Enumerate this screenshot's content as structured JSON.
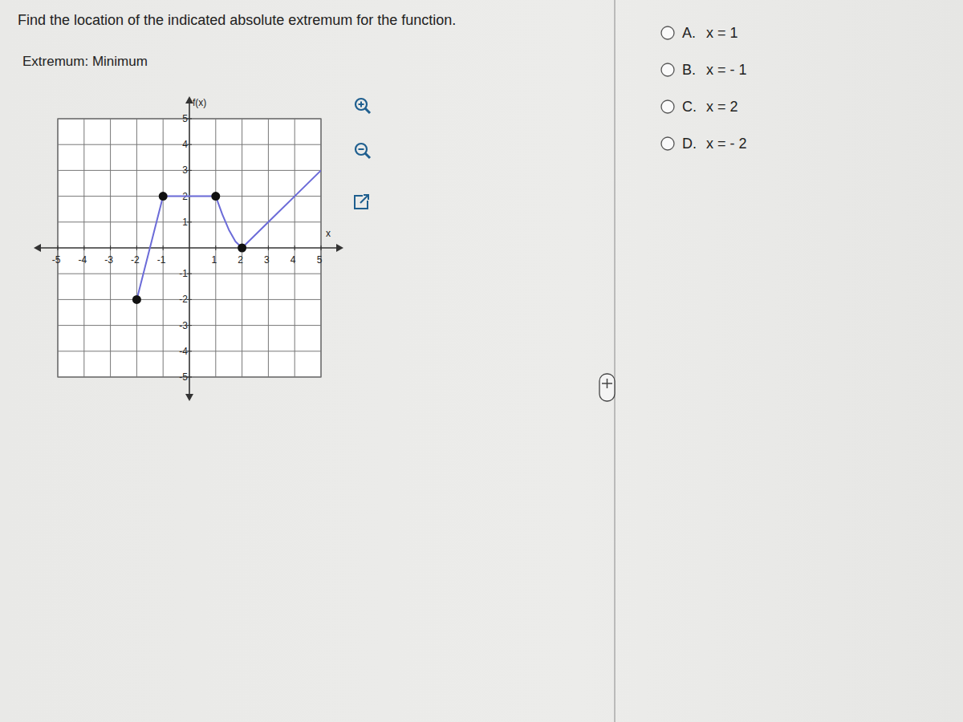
{
  "question": "Find the location of the indicated absolute extremum for the function.",
  "extremum": "Extremum: Minimum",
  "options": [
    {
      "letter": "A.",
      "text": "x = 1"
    },
    {
      "letter": "B.",
      "text": "x = - 1"
    },
    {
      "letter": "C.",
      "text": "x = 2"
    },
    {
      "letter": "D.",
      "text": "x = - 2"
    }
  ],
  "chart_data": {
    "type": "line",
    "x_label": "x",
    "y_label": "f(x)",
    "x": [
      -2,
      -1,
      0,
      1,
      1.25,
      1.5,
      1.75,
      2,
      3,
      4,
      5
    ],
    "series": [
      {
        "color": "#6b6bd8",
        "values": [
          -2,
          2,
          2,
          2,
          1.3,
          0.7,
          0.25,
          0,
          1,
          2,
          3
        ]
      },
      {
        "type": "scatter",
        "marker": "circle",
        "color": "#111111",
        "values": [
          -2,
          2,
          null,
          2,
          null,
          null,
          null,
          0,
          null,
          null,
          null
        ]
      }
    ],
    "xlim": [
      -5,
      5
    ],
    "ylim": [
      -5,
      5
    ],
    "xticks": [
      -5,
      -4,
      -3,
      -2,
      -1,
      1,
      2,
      3,
      4,
      5
    ],
    "yticks": [
      -5,
      -4,
      -3,
      -2,
      -1,
      1,
      2,
      3,
      4,
      5
    ],
    "grid": true
  }
}
